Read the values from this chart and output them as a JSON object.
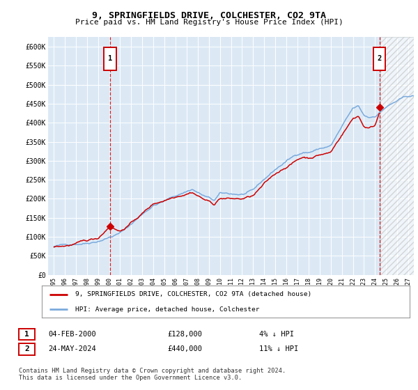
{
  "title": "9, SPRINGFIELDS DRIVE, COLCHESTER, CO2 9TA",
  "subtitle": "Price paid vs. HM Land Registry's House Price Index (HPI)",
  "background_color": "#dce9f5",
  "hpi_color": "#7aaadd",
  "price_color": "#cc0000",
  "dashed_line_color": "#cc0000",
  "legend_label_price": "9, SPRINGFIELDS DRIVE, COLCHESTER, CO2 9TA (detached house)",
  "legend_label_hpi": "HPI: Average price, detached house, Colchester",
  "annotation1_date": "04-FEB-2000",
  "annotation1_price": "£128,000",
  "annotation1_hpi": "4% ↓ HPI",
  "annotation2_date": "24-MAY-2024",
  "annotation2_price": "£440,000",
  "annotation2_hpi": "11% ↓ HPI",
  "footer": "Contains HM Land Registry data © Crown copyright and database right 2024.\nThis data is licensed under the Open Government Licence v3.0.",
  "sale1_x": 2000.09,
  "sale1_y": 128000,
  "sale2_x": 2024.39,
  "sale2_y": 440000,
  "xmin": 1994.5,
  "xmax": 2027.5,
  "ymin": 0,
  "ymax": 625000,
  "yticks": [
    0,
    50000,
    100000,
    150000,
    200000,
    250000,
    300000,
    350000,
    400000,
    450000,
    500000,
    550000,
    600000
  ],
  "ytick_labels": [
    "£0",
    "£50K",
    "£100K",
    "£150K",
    "£200K",
    "£250K",
    "£300K",
    "£350K",
    "£400K",
    "£450K",
    "£500K",
    "£550K",
    "£600K"
  ],
  "hatch_start": 2024.5,
  "hatch_end": 2027.5
}
